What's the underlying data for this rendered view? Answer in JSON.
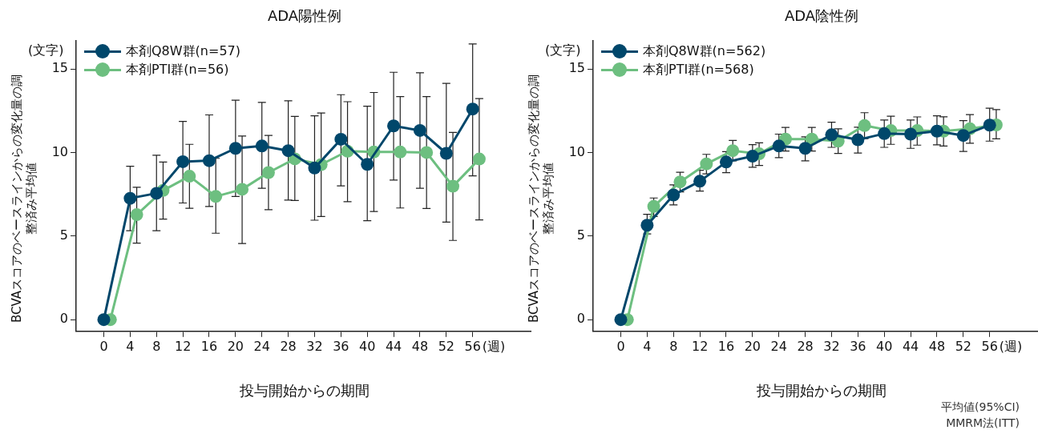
{
  "chart_data": [
    {
      "type": "line",
      "title": "ADA陽性例",
      "xlabel": "投与開始からの期間",
      "ylabel": "BCVAスコアのベースラインからの変化量の調整済み平均値",
      "annotations": [
        "(文字)",
        "(週)"
      ],
      "legend": "top left",
      "marker": "circle",
      "line_style": "solid",
      "grid": false,
      "x": [
        0,
        4,
        8,
        12,
        16,
        20,
        24,
        28,
        32,
        36,
        40,
        44,
        48,
        52,
        56
      ],
      "xlim": [
        -4.2,
        64.8
      ],
      "xticks": [
        0,
        4,
        8,
        12,
        16,
        20,
        24,
        28,
        32,
        36,
        40,
        44,
        48,
        52,
        56
      ],
      "ylim": [
        -0.7,
        16.7
      ],
      "yticks": [
        0,
        5,
        10,
        15
      ],
      "series": [
        {
          "name": "本剤Q8W群(n=57)",
          "color": "#00476b",
          "values": [
            0,
            7.26,
            7.56,
            9.45,
            9.51,
            10.25,
            10.39,
            10.11,
            9.07,
            10.79,
            9.29,
            11.59,
            11.32,
            9.95,
            12.6
          ],
          "errors": [
            null,
            [
              5.32,
              9.18
            ],
            [
              5.32,
              9.84
            ],
            [
              6.98,
              11.86
            ],
            [
              6.77,
              12.25
            ],
            [
              7.37,
              13.13
            ],
            [
              7.86,
              13.0
            ],
            [
              7.15,
              13.09
            ],
            [
              5.95,
              12.2
            ],
            [
              8.0,
              13.46
            ],
            [
              5.92,
              12.77
            ],
            [
              8.35,
              14.8
            ],
            [
              7.86,
              14.77
            ],
            [
              5.84,
              14.14
            ],
            [
              8.6,
              16.5
            ]
          ]
        },
        {
          "name": "本剤PTI群(n=56)",
          "color": "#6dbf80",
          "x": [
            1,
            5,
            9,
            13,
            17,
            21,
            25,
            29,
            33,
            37,
            41,
            45,
            49,
            53,
            57
          ],
          "values": [
            0,
            6.28,
            7.73,
            8.58,
            7.37,
            7.8,
            8.8,
            9.62,
            9.28,
            10.08,
            10.03,
            10.03,
            10.0,
            7.98,
            9.61
          ],
          "errors": [
            null,
            [
              4.58,
              7.92
            ],
            [
              6.02,
              9.43
            ],
            [
              6.66,
              10.49
            ],
            [
              5.17,
              9.65
            ],
            [
              4.55,
              10.99
            ],
            [
              6.58,
              11.02
            ],
            [
              7.13,
              12.16
            ],
            [
              6.17,
              12.36
            ],
            [
              7.06,
              13.04
            ],
            [
              6.47,
              13.59
            ],
            [
              6.68,
              13.35
            ],
            [
              6.65,
              13.35
            ],
            [
              4.74,
              11.2
            ],
            [
              5.97,
              13.23
            ]
          ]
        }
      ]
    },
    {
      "type": "line",
      "title": "ADA陰性例",
      "xlabel": "投与開始からの期間",
      "ylabel": "BCVAスコアのベースラインからの変化量の調整済み平均値",
      "annotations": [
        "(文字)",
        "(週)",
        "平均値(95%CI)",
        "MMRM法(ITT)"
      ],
      "legend": "top left",
      "marker": "circle",
      "line_style": "solid",
      "grid": false,
      "x": [
        0,
        4,
        8,
        12,
        16,
        20,
        24,
        28,
        32,
        36,
        40,
        44,
        48,
        52,
        56
      ],
      "xlim": [
        -4.2,
        64.8
      ],
      "xticks": [
        0,
        4,
        8,
        12,
        16,
        20,
        24,
        28,
        32,
        36,
        40,
        44,
        48,
        52,
        56
      ],
      "ylim": [
        -0.7,
        16.7
      ],
      "yticks": [
        0,
        5,
        10,
        15
      ],
      "series": [
        {
          "name": "本剤Q8W群(n=562)",
          "color": "#00476b",
          "values": [
            0,
            5.65,
            7.46,
            8.28,
            9.43,
            9.78,
            10.39,
            10.25,
            11.06,
            10.76,
            11.13,
            11.1,
            11.28,
            11.02,
            11.64
          ],
          "errors": [
            null,
            [
              5.13,
              6.3
            ],
            [
              6.87,
              8.06
            ],
            [
              7.69,
              8.94
            ],
            [
              8.79,
              10.05
            ],
            [
              9.12,
              10.47
            ],
            [
              9.69,
              11.1
            ],
            [
              9.5,
              10.94
            ],
            [
              10.31,
              11.81
            ],
            [
              9.97,
              11.51
            ],
            [
              10.31,
              11.94
            ],
            [
              10.25,
              11.94
            ],
            [
              10.46,
              12.2
            ],
            [
              10.06,
              11.91
            ],
            [
              10.68,
              12.65
            ]
          ]
        },
        {
          "name": "本剤PTI群(n=568)",
          "color": "#6dbf80",
          "x": [
            1,
            5,
            9,
            13,
            17,
            21,
            25,
            29,
            33,
            37,
            41,
            45,
            49,
            53,
            57
          ],
          "values": [
            0,
            6.77,
            8.24,
            9.32,
            10.11,
            9.92,
            10.8,
            10.8,
            10.68,
            11.61,
            11.31,
            11.31,
            11.28,
            11.42,
            11.65
          ],
          "errors": [
            null,
            [
              6.17,
              7.28
            ],
            [
              7.64,
              8.82
            ],
            [
              8.72,
              9.89
            ],
            [
              9.5,
              10.72
            ],
            [
              9.23,
              10.58
            ],
            [
              10.09,
              11.5
            ],
            [
              10.09,
              11.5
            ],
            [
              9.94,
              11.42
            ],
            [
              10.83,
              12.38
            ],
            [
              10.49,
              12.17
            ],
            [
              10.44,
              12.13
            ],
            [
              10.39,
              12.14
            ],
            [
              10.55,
              12.27
            ],
            [
              10.82,
              12.57
            ]
          ]
        }
      ]
    }
  ]
}
